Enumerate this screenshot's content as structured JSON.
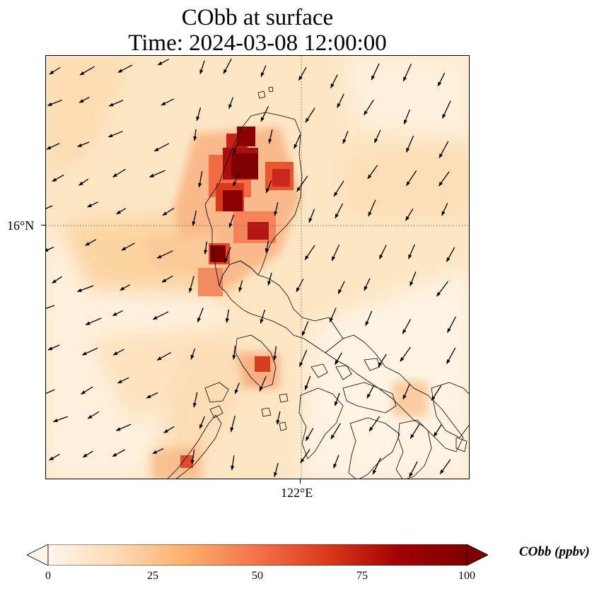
{
  "title": {
    "line1": "CObb at surface",
    "line2": "Time: 2024-03-08 12:00:00"
  },
  "axes": {
    "lat_label": "16°N",
    "lon_label": "122°E",
    "gridlines": "dotted"
  },
  "colorbar": {
    "label": "CObb (ppbv)",
    "ticks": [
      "0",
      "25",
      "50",
      "75",
      "100"
    ],
    "min": 0,
    "max": 100,
    "extend": "both",
    "colormap": [
      "#fff5eb",
      "#fdd9b3",
      "#fdae6b",
      "#f4714a",
      "#d93a1b",
      "#a40204",
      "#7f0000"
    ]
  },
  "features": {
    "coastline_color": "#000000",
    "wind_vector_color": "#000000",
    "background_field": "#fdebcf"
  }
}
